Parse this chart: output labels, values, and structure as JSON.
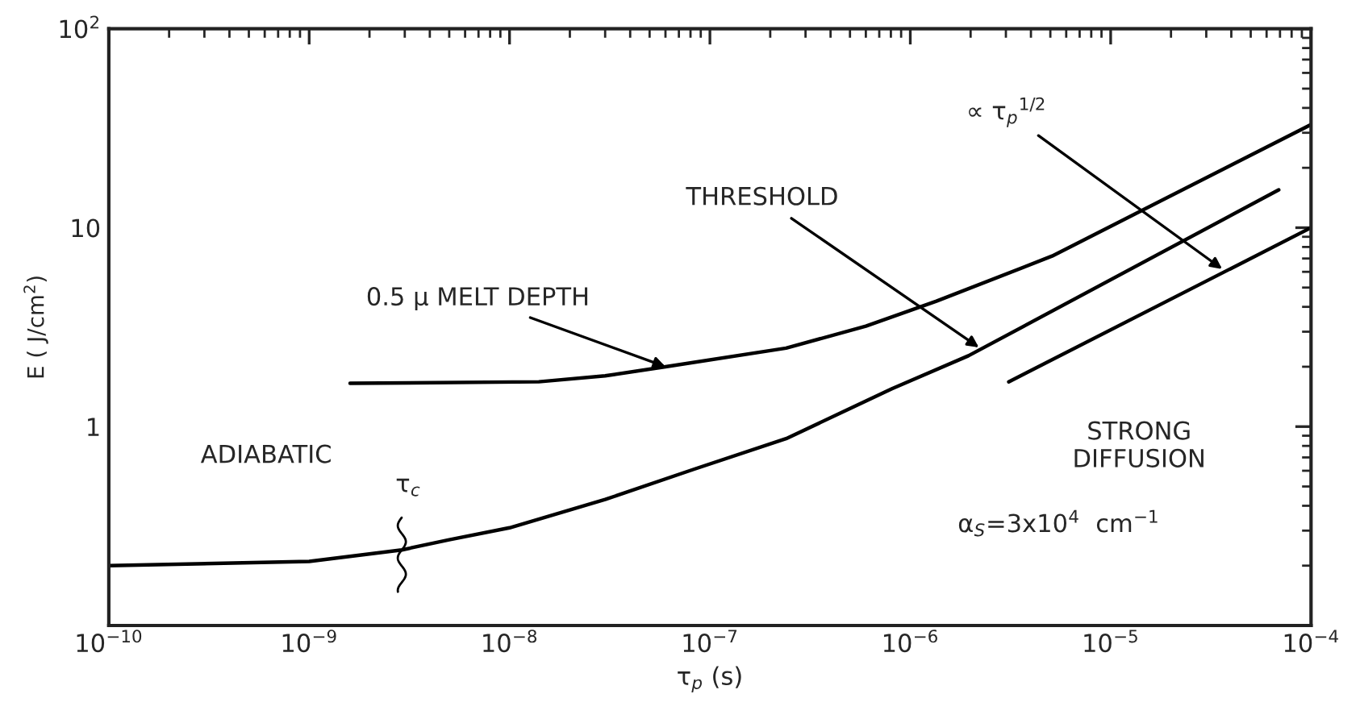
{
  "chart_data": {
    "type": "line",
    "xlabel": "τ$_{p}$ (s)",
    "ylabel": "E ( J/cm$^{2}$)",
    "log": "xy",
    "grid": false,
    "legend": false,
    "marker": "none",
    "line_style": "solid",
    "xlim": [
      1e-10,
      0.0001
    ],
    "xticks": [
      {
        "value": 1e-10,
        "label": "10$^{−10}$"
      },
      {
        "value": 1e-09,
        "label": "10$^{−9}$"
      },
      {
        "value": 1e-08,
        "label": "10$^{−8}$"
      },
      {
        "value": 1e-07,
        "label": "10$^{−7}$"
      },
      {
        "value": 1e-06,
        "label": "10$^{−6}$"
      },
      {
        "value": 1e-05,
        "label": "10$^{−5}$"
      },
      {
        "value": 0.0001,
        "label": "10$^{−4}$"
      }
    ],
    "ylim": [
      0.1,
      100
    ],
    "yticks": [
      1,
      10,
      {
        "value": 100,
        "label": "10$^{2}$"
      }
    ],
    "series": [
      {
        "color": "#000000",
        "x": [
          1e-10,
          1e-09,
          2.9e-09,
          5e-09,
          1e-08,
          3e-08,
          8.3e-08,
          2.4e-07,
          8.1e-07,
          1.95e-06,
          6.9e-05
        ],
        "values": [
          0.2,
          0.21,
          0.24,
          0.27,
          0.31,
          0.43,
          0.61,
          0.87,
          1.55,
          2.27,
          15.5
        ]
      },
      {
        "color": "#000000",
        "x": [
          1.6e-09,
          1.4e-08,
          3e-08,
          6e-08,
          2.4e-07,
          6e-07,
          1.35e-06,
          5.1e-06,
          0.0001
        ],
        "values": [
          1.65,
          1.68,
          1.8,
          2.0,
          2.48,
          3.2,
          4.27,
          7.2,
          33
        ]
      },
      {
        "color": "#000000",
        "x": [
          3.1e-06,
          0.0001
        ],
        "values": [
          1.68,
          10
        ]
      }
    ],
    "annotations": [
      {
        "text": "0.5 μ MELT DEPTH",
        "x": 6e-08,
        "y": 2.0
      },
      {
        "text": "THRESHOLD",
        "x": 2.2e-06,
        "y": 2.5
      },
      {
        "text": "∝ τ$_{p}$$^{1/2}$",
        "x": 3.6e-05,
        "y": 6.2
      },
      {
        "text": "τ$_{c}$",
        "x": 2.9e-09,
        "y": 0.24
      },
      "ADIABATIC",
      "STRONG\nDIFFUSION",
      "α$_{S}$=3x10$^{4}$  cm$^{−1}$"
    ]
  }
}
